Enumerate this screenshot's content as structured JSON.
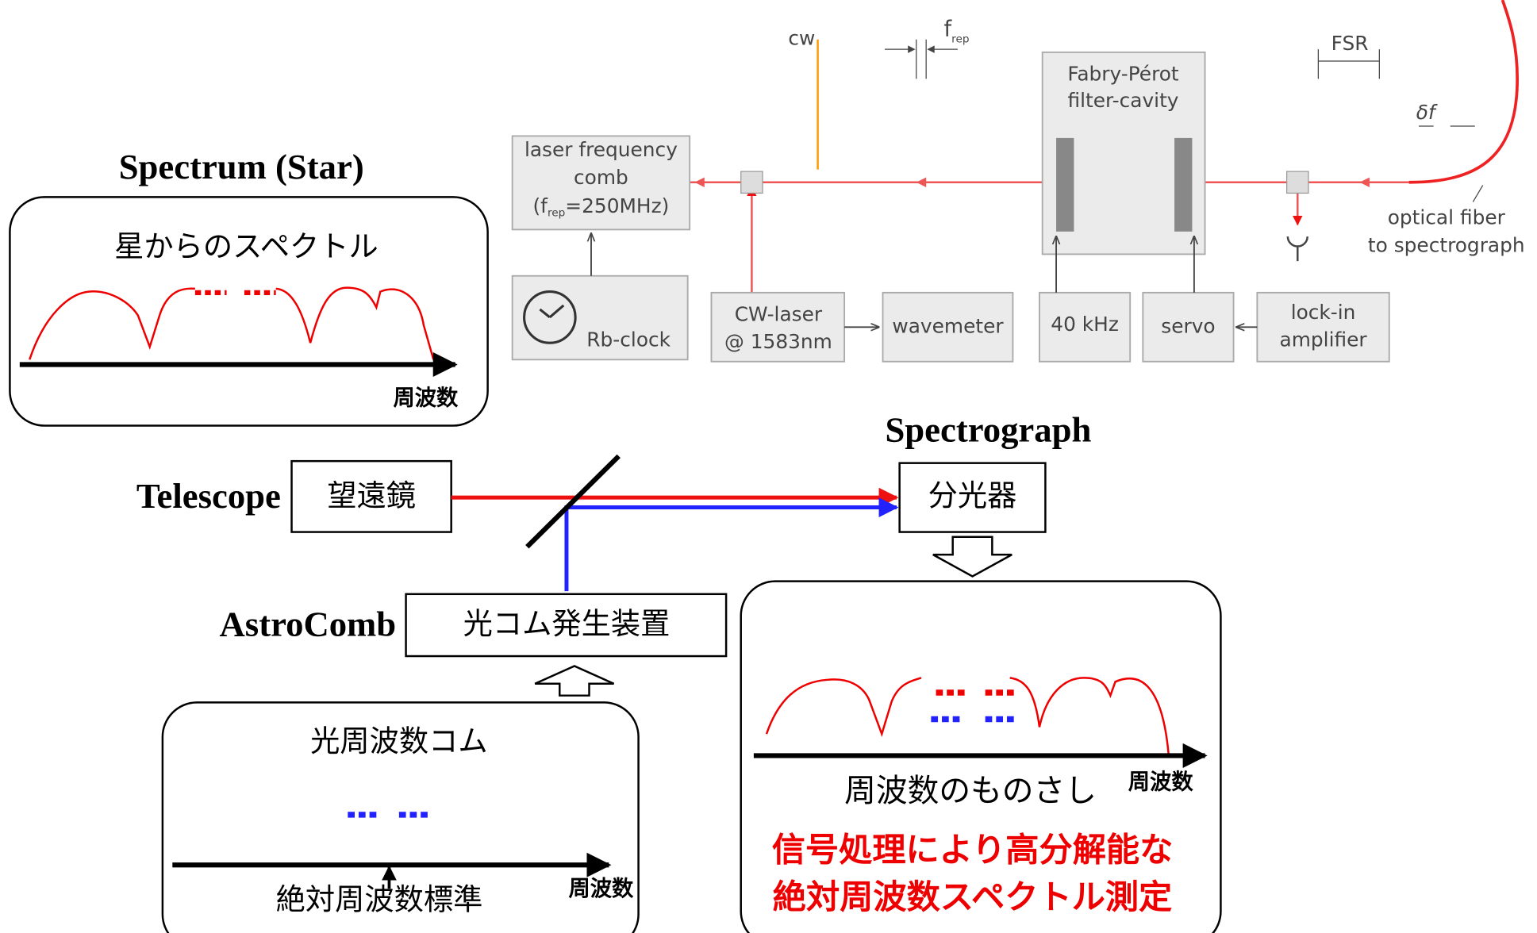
{
  "spectrum_panel": {
    "title": "Spectrum (Star)",
    "label": "星からのスペクトル",
    "axis_label": "周波数"
  },
  "telescope": {
    "label": "Telescope",
    "box": "望遠鏡"
  },
  "spectrograph": {
    "label": "Spectrograph",
    "box": "分光器"
  },
  "astrocomb": {
    "label": "AstroComb",
    "box": "光コム発生装置"
  },
  "comb_panel": {
    "title": "光周波数コム",
    "standard": "絶対周波数標準",
    "axis_label": "周波数"
  },
  "ruler_panel": {
    "title": "周波数のものさし",
    "axis_label": "周波数",
    "notes": [
      "信号処理により高分解能な",
      "絶対周波数スペクトル測定"
    ]
  },
  "setup": {
    "comb_box": {
      "lines": [
        "laser frequency",
        "comb"
      ],
      "rate": {
        "pre": "(f",
        "sub": "rep",
        "post": "=250MHz)"
      }
    },
    "rb_clock": "Rb-clock",
    "cw_laser": [
      "CW-laser",
      "@ 1583nm"
    ],
    "wavemeter": "wavemeter",
    "modulation": "40 kHz",
    "servo": "servo",
    "lock_in": [
      "lock-in",
      "amplifier"
    ],
    "cavity": [
      "Fabry-Pérot",
      "filter-cavity"
    ],
    "cw": "cw",
    "frep": {
      "main": "f",
      "sub": "rep"
    },
    "fsr": "FSR",
    "linewidth": "δf",
    "fiber": [
      "optical fiber",
      "to spectrograph"
    ]
  }
}
